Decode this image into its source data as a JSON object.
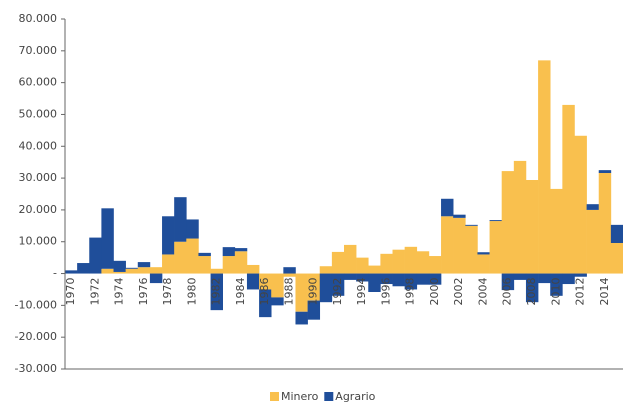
{
  "chart_data": {
    "type": "stacked-bar",
    "categories": [
      "1970",
      null,
      "1972",
      null,
      "1974",
      null,
      "1976",
      null,
      "1978",
      null,
      "1980",
      null,
      "1982",
      null,
      "1984",
      null,
      "1986",
      null,
      "1988",
      null,
      "1990",
      null,
      "1992",
      null,
      "1994",
      null,
      "1996",
      null,
      "1998",
      null,
      "2000",
      null,
      "2002",
      null,
      "2004",
      null,
      "2006",
      null,
      "2008",
      null,
      "2010",
      null,
      "2012",
      null,
      "2014",
      null
    ],
    "series": [
      {
        "name": "Minero",
        "color": "#f9c04e",
        "values": [
          0,
          0,
          0,
          1500,
          500,
          1500,
          2000,
          2000,
          6000,
          10000,
          11000,
          5500,
          1500,
          5500,
          7000,
          2700,
          -5000,
          -7500,
          -1000,
          -12000,
          -8500,
          2300,
          6800,
          9000,
          5000,
          2500,
          6200,
          7500,
          8400,
          7000,
          5500,
          18000,
          17500,
          15000,
          6000,
          16500,
          32200,
          35400,
          29400,
          67000,
          26600,
          53000,
          43300,
          20000,
          31600,
          9600
        ]
      },
      {
        "name": "Agrario",
        "color": "#1f4e9a",
        "values": [
          1000,
          3300,
          11300,
          19000,
          3500,
          300,
          1600,
          -3000,
          12000,
          14000,
          6000,
          1000,
          -11500,
          2800,
          1000,
          -5000,
          -8700,
          -2500,
          2000,
          -4000,
          -6000,
          -9000,
          -7000,
          -2000,
          -2500,
          -5800,
          -3300,
          -4000,
          -5000,
          -3500,
          -3500,
          5500,
          1000,
          300,
          700,
          300,
          -5200,
          -2000,
          -9000,
          -3000,
          -7000,
          -3300,
          -1000,
          1800,
          900,
          5700
        ]
      }
    ],
    "ylim": [
      -30000,
      80000
    ],
    "yticks": [
      {
        "value": -30000,
        "label": "-30.000"
      },
      {
        "value": -20000,
        "label": "-20.000"
      },
      {
        "value": -10000,
        "label": "-10.000"
      },
      {
        "value": 0,
        "label": "-"
      },
      {
        "value": 10000,
        "label": "10.000"
      },
      {
        "value": 20000,
        "label": "20.000"
      },
      {
        "value": 30000,
        "label": "30.000"
      },
      {
        "value": 40000,
        "label": "40.000"
      },
      {
        "value": 50000,
        "label": "50.000"
      },
      {
        "value": 60000,
        "label": "60.000"
      },
      {
        "value": 70000,
        "label": "70.000"
      },
      {
        "value": 80000,
        "label": "80.000"
      }
    ],
    "legend": "bottom"
  }
}
